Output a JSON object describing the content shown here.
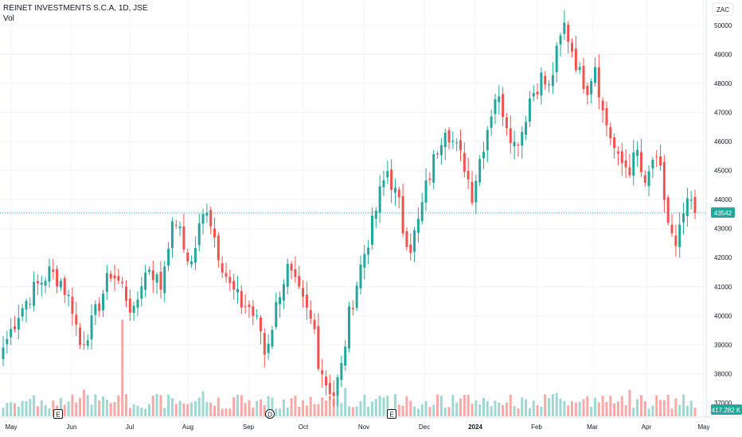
{
  "header": {
    "title": "REINET INVESTMENTS S.C.A, 1D, JSE",
    "volume_label": "Vol"
  },
  "currency": "ZAC",
  "last_price_label": "43542",
  "volume_value_label": "417.282 K",
  "colors": {
    "up": "#26a69a",
    "down": "#ef5350",
    "up_vol": "#9fd8d1",
    "down_vol": "#f7a9a7",
    "last_line": "#26a69a",
    "grid": "#f0f3fa"
  },
  "events": [
    {
      "label": "E",
      "month": "Jun"
    },
    {
      "label": "D",
      "month": "Sep"
    },
    {
      "label": "E",
      "month": "Dec"
    }
  ],
  "chart_data": {
    "type": "candlestick",
    "y_ticks": [
      37000,
      38000,
      39000,
      40000,
      41000,
      42000,
      43000,
      44000,
      45000,
      46000,
      47000,
      48000,
      49000,
      50000
    ],
    "ylim": [
      36700,
      50400
    ],
    "x_labels": [
      "May",
      "Jun",
      "Jul",
      "Aug",
      "Sep",
      "Oct",
      "Nov",
      "Dec",
      "2024",
      "Feb",
      "Mar",
      "Apr",
      "May"
    ],
    "last_price": 43542,
    "volume_last": "417.282 K",
    "close_path": [
      [
        0,
        38900
      ],
      [
        4,
        40100
      ],
      [
        8,
        40900
      ],
      [
        12,
        41500
      ],
      [
        15,
        41200
      ],
      [
        18,
        40300
      ],
      [
        20,
        39000
      ],
      [
        23,
        39700
      ],
      [
        26,
        40800
      ],
      [
        28,
        41500
      ],
      [
        31,
        41000
      ],
      [
        34,
        40000
      ],
      [
        36,
        41200
      ],
      [
        38,
        41700
      ],
      [
        41,
        41000
      ],
      [
        43,
        42600
      ],
      [
        45,
        43300
      ],
      [
        47,
        42300
      ],
      [
        49,
        41800
      ],
      [
        51,
        43000
      ],
      [
        53,
        43800
      ],
      [
        56,
        42200
      ],
      [
        59,
        41000
      ],
      [
        62,
        40400
      ],
      [
        64,
        40300
      ],
      [
        67,
        39500
      ],
      [
        68,
        38700
      ],
      [
        70,
        39700
      ],
      [
        72,
        40900
      ],
      [
        74,
        41600
      ],
      [
        76,
        41000
      ],
      [
        78,
        40400
      ],
      [
        81,
        39500
      ],
      [
        82,
        38500
      ],
      [
        84,
        37700
      ],
      [
        86,
        37300
      ],
      [
        88,
        38200
      ],
      [
        90,
        40000
      ],
      [
        93,
        41700
      ],
      [
        96,
        43100
      ],
      [
        98,
        44200
      ],
      [
        100,
        45000
      ],
      [
        103,
        43800
      ],
      [
        104,
        43000
      ],
      [
        106,
        42400
      ],
      [
        108,
        43200
      ],
      [
        110,
        44400
      ],
      [
        113,
        45800
      ],
      [
        115,
        46600
      ],
      [
        117,
        46000
      ],
      [
        120,
        45200
      ],
      [
        122,
        44200
      ],
      [
        124,
        45400
      ],
      [
        126,
        46500
      ],
      [
        128,
        47600
      ],
      [
        130,
        47100
      ],
      [
        133,
        45900
      ],
      [
        135,
        46400
      ],
      [
        137,
        47500
      ],
      [
        140,
        48200
      ],
      [
        142,
        47800
      ],
      [
        144,
        49000
      ],
      [
        146,
        50000
      ],
      [
        148,
        49200
      ],
      [
        150,
        48300
      ],
      [
        152,
        47900
      ],
      [
        154,
        48700
      ],
      [
        156,
        47000
      ],
      [
        158,
        46200
      ],
      [
        160,
        45300
      ],
      [
        163,
        45100
      ],
      [
        165,
        45600
      ],
      [
        167,
        44300
      ],
      [
        169,
        45400
      ],
      [
        171,
        44900
      ],
      [
        173,
        43200
      ],
      [
        175,
        42200
      ],
      [
        177,
        43500
      ],
      [
        179,
        43900
      ],
      [
        180,
        43542
      ]
    ],
    "volume_spikes": [
      {
        "index": 31,
        "value": 5.8
      },
      {
        "index": 21,
        "value": 1.6
      },
      {
        "index": 52,
        "value": 1.5
      },
      {
        "index": 89,
        "value": 1.7
      },
      {
        "index": 144,
        "value": 1.4
      },
      {
        "index": 163,
        "value": 1.6
      }
    ]
  }
}
